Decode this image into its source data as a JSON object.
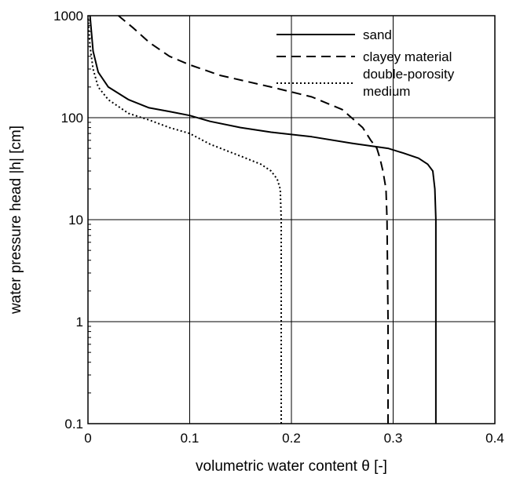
{
  "chart_data": {
    "type": "line",
    "title": "",
    "xlabel": "volumetric  water content θ [-]",
    "ylabel": "water pressure head |h| [cm]",
    "xlim": [
      0,
      0.4
    ],
    "ylim": [
      0.1,
      1000
    ],
    "yscale": "log",
    "grid": true,
    "legend_position": "top-right",
    "x_ticks": [
      "0",
      "0.1",
      "0.2",
      "0.3",
      "0.4"
    ],
    "y_ticks": [
      "0.1",
      "1",
      "10",
      "100",
      "1000"
    ],
    "x_tick_values": [
      0,
      0.1,
      0.2,
      0.3,
      0.4
    ],
    "y_tick_values": [
      0.1,
      1,
      10,
      100,
      1000
    ],
    "series": [
      {
        "name": "sand",
        "style": "solid",
        "points": [
          [
            0.342,
            0.1
          ],
          [
            0.342,
            1
          ],
          [
            0.342,
            10
          ],
          [
            0.341,
            20
          ],
          [
            0.339,
            30
          ],
          [
            0.334,
            35
          ],
          [
            0.325,
            40
          ],
          [
            0.31,
            45
          ],
          [
            0.295,
            50
          ],
          [
            0.26,
            56
          ],
          [
            0.22,
            65
          ],
          [
            0.18,
            72
          ],
          [
            0.15,
            80
          ],
          [
            0.12,
            92
          ],
          [
            0.1,
            105
          ],
          [
            0.08,
            115
          ],
          [
            0.06,
            125
          ],
          [
            0.04,
            150
          ],
          [
            0.02,
            200
          ],
          [
            0.01,
            280
          ],
          [
            0.005,
            450
          ],
          [
            0.002,
            1000
          ]
        ]
      },
      {
        "name": "clayey material",
        "style": "dashed",
        "points": [
          [
            0.295,
            0.1
          ],
          [
            0.295,
            1
          ],
          [
            0.294,
            10
          ],
          [
            0.293,
            20
          ],
          [
            0.29,
            30
          ],
          [
            0.287,
            40
          ],
          [
            0.284,
            50
          ],
          [
            0.278,
            60
          ],
          [
            0.27,
            80
          ],
          [
            0.25,
            120
          ],
          [
            0.22,
            160
          ],
          [
            0.18,
            200
          ],
          [
            0.13,
            260
          ],
          [
            0.1,
            330
          ],
          [
            0.08,
            400
          ],
          [
            0.06,
            550
          ],
          [
            0.045,
            750
          ],
          [
            0.03,
            1000
          ]
        ]
      },
      {
        "name": "double-porosity\nmedium",
        "style": "dotted",
        "points": [
          [
            0.19,
            0.1
          ],
          [
            0.19,
            1
          ],
          [
            0.19,
            10
          ],
          [
            0.189,
            20
          ],
          [
            0.186,
            25
          ],
          [
            0.18,
            30
          ],
          [
            0.17,
            35
          ],
          [
            0.15,
            42
          ],
          [
            0.12,
            55
          ],
          [
            0.1,
            70
          ],
          [
            0.08,
            80
          ],
          [
            0.06,
            95
          ],
          [
            0.04,
            110
          ],
          [
            0.02,
            150
          ],
          [
            0.01,
            200
          ],
          [
            0.005,
            300
          ],
          [
            0.002,
            500
          ],
          [
            0,
            1000
          ]
        ]
      }
    ]
  }
}
